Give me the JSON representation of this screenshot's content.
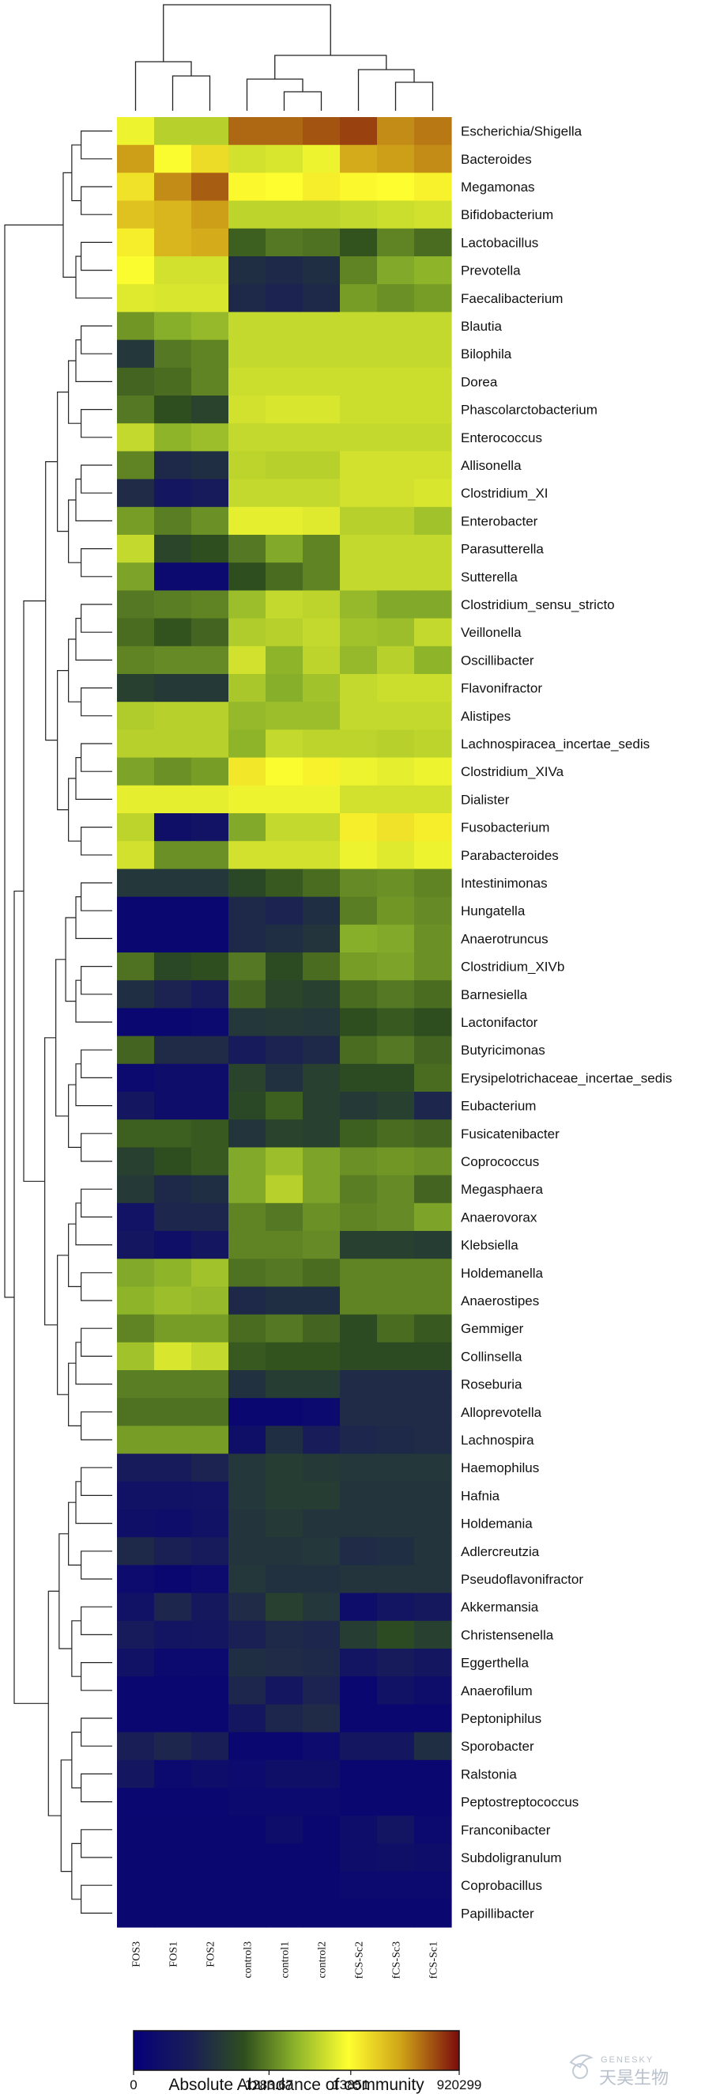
{
  "chart_data": {
    "type": "heatmap",
    "columns": [
      "FOS3",
      "FOS1",
      "FOS2",
      "control3",
      "control1",
      "control2",
      "fCS-Sc2",
      "fCS-Sc3",
      "fCS-Sc1"
    ],
    "rows": [
      "Escherichia/Shigella",
      "Bacteroides",
      "Megamonas",
      "Bifidobacterium",
      "Lactobacillus",
      "Prevotella",
      "Faecalibacterium",
      "Blautia",
      "Bilophila",
      "Dorea",
      "Phascolarctobacterium",
      "Enterococcus",
      "Allisonella",
      "Clostridium_XI",
      "Enterobacter",
      "Parasutterella",
      "Sutterella",
      "Clostridium_sensu_stricto",
      "Veillonella",
      "Oscillibacter",
      "Flavonifractor",
      "Alistipes",
      "Lachnospiracea_incertae_sedis",
      "Clostridium_XIVa",
      "Dialister",
      "Fusobacterium",
      "Parabacteroides",
      "Intestinimonas",
      "Hungatella",
      "Anaerotruncus",
      "Clostridium_XIVb",
      "Barnesiella",
      "Lactonifactor",
      "Butyricimonas",
      "Erysipelotrichaceae_incertae_sedis",
      "Eubacterium",
      "Fusicatenibacter",
      "Coprococcus",
      "Megasphaera",
      "Anaerovorax",
      "Klebsiella",
      "Holdemanella",
      "Anaerostipes",
      "Gemmiger",
      "Collinsella",
      "Roseburia",
      "Alloprevotella",
      "Lachnospira",
      "Haemophilus",
      "Hafnia",
      "Holdemania",
      "Adlercreutzia",
      "Pseudoflavonifractor",
      "Akkermansia",
      "Christensenella",
      "Eggerthella",
      "Anaerofilum",
      "Peptoniphilus",
      "Sporobacter",
      "Ralstonia",
      "Peptostreptococcus",
      "Franconibacter",
      "Subdoligranulum",
      "Coprobacillus",
      "Papillibacter"
    ],
    "values": [
      [
        0.64,
        0.56,
        0.56,
        0.9,
        0.9,
        0.92,
        0.94,
        0.86,
        0.88
      ],
      [
        0.84,
        0.66,
        0.73,
        0.6,
        0.61,
        0.64,
        0.82,
        0.84,
        0.86
      ],
      [
        0.72,
        0.86,
        0.91,
        0.68,
        0.67,
        0.7,
        0.68,
        0.67,
        0.69
      ],
      [
        0.78,
        0.8,
        0.84,
        0.57,
        0.57,
        0.57,
        0.58,
        0.59,
        0.6
      ],
      [
        0.7,
        0.8,
        0.82,
        0.36,
        0.4,
        0.39,
        0.34,
        0.42,
        0.38
      ],
      [
        0.66,
        0.6,
        0.6,
        0.22,
        0.2,
        0.22,
        0.42,
        0.48,
        0.5
      ],
      [
        0.62,
        0.61,
        0.61,
        0.2,
        0.18,
        0.2,
        0.46,
        0.44,
        0.46
      ],
      [
        0.45,
        0.49,
        0.51,
        0.58,
        0.58,
        0.58,
        0.58,
        0.58,
        0.58
      ],
      [
        0.25,
        0.4,
        0.42,
        0.58,
        0.58,
        0.58,
        0.58,
        0.58,
        0.58
      ],
      [
        0.37,
        0.38,
        0.42,
        0.59,
        0.59,
        0.59,
        0.59,
        0.59,
        0.59
      ],
      [
        0.4,
        0.33,
        0.29,
        0.6,
        0.61,
        0.61,
        0.59,
        0.59,
        0.59
      ],
      [
        0.58,
        0.5,
        0.52,
        0.58,
        0.58,
        0.58,
        0.58,
        0.58,
        0.58
      ],
      [
        0.42,
        0.2,
        0.22,
        0.57,
        0.56,
        0.56,
        0.6,
        0.6,
        0.6
      ],
      [
        0.21,
        0.12,
        0.14,
        0.58,
        0.58,
        0.58,
        0.6,
        0.6,
        0.61
      ],
      [
        0.46,
        0.41,
        0.44,
        0.63,
        0.63,
        0.62,
        0.56,
        0.56,
        0.53
      ],
      [
        0.58,
        0.3,
        0.33,
        0.4,
        0.48,
        0.42,
        0.58,
        0.58,
        0.58
      ],
      [
        0.47,
        0.05,
        0.05,
        0.33,
        0.38,
        0.42,
        0.58,
        0.58,
        0.58
      ],
      [
        0.4,
        0.41,
        0.42,
        0.52,
        0.58,
        0.57,
        0.51,
        0.48,
        0.48
      ],
      [
        0.38,
        0.34,
        0.37,
        0.55,
        0.56,
        0.58,
        0.53,
        0.52,
        0.58
      ],
      [
        0.42,
        0.43,
        0.43,
        0.6,
        0.5,
        0.57,
        0.51,
        0.56,
        0.5
      ],
      [
        0.28,
        0.26,
        0.26,
        0.54,
        0.49,
        0.53,
        0.58,
        0.59,
        0.59
      ],
      [
        0.55,
        0.56,
        0.56,
        0.51,
        0.52,
        0.52,
        0.58,
        0.58,
        0.58
      ],
      [
        0.56,
        0.56,
        0.56,
        0.5,
        0.58,
        0.57,
        0.57,
        0.56,
        0.57
      ],
      [
        0.47,
        0.44,
        0.46,
        0.71,
        0.66,
        0.69,
        0.64,
        0.63,
        0.64
      ],
      [
        0.63,
        0.63,
        0.63,
        0.64,
        0.64,
        0.64,
        0.6,
        0.6,
        0.6
      ],
      [
        0.57,
        0.08,
        0.1,
        0.48,
        0.58,
        0.58,
        0.7,
        0.72,
        0.7
      ],
      [
        0.6,
        0.44,
        0.44,
        0.6,
        0.6,
        0.6,
        0.64,
        0.62,
        0.64
      ],
      [
        0.25,
        0.25,
        0.25,
        0.31,
        0.35,
        0.38,
        0.43,
        0.44,
        0.42
      ],
      [
        0.04,
        0.04,
        0.04,
        0.2,
        0.18,
        0.22,
        0.41,
        0.45,
        0.43
      ],
      [
        0.04,
        0.04,
        0.04,
        0.2,
        0.22,
        0.24,
        0.49,
        0.48,
        0.44
      ],
      [
        0.39,
        0.31,
        0.33,
        0.4,
        0.32,
        0.38,
        0.46,
        0.47,
        0.44
      ],
      [
        0.22,
        0.18,
        0.14,
        0.37,
        0.3,
        0.28,
        0.38,
        0.4,
        0.38
      ],
      [
        0.04,
        0.04,
        0.05,
        0.25,
        0.26,
        0.25,
        0.33,
        0.35,
        0.33
      ],
      [
        0.37,
        0.21,
        0.21,
        0.14,
        0.18,
        0.2,
        0.38,
        0.4,
        0.37
      ],
      [
        0.05,
        0.07,
        0.07,
        0.29,
        0.23,
        0.28,
        0.32,
        0.32,
        0.38
      ],
      [
        0.12,
        0.07,
        0.07,
        0.31,
        0.36,
        0.28,
        0.26,
        0.28,
        0.19
      ],
      [
        0.36,
        0.36,
        0.35,
        0.24,
        0.29,
        0.28,
        0.36,
        0.38,
        0.37
      ],
      [
        0.28,
        0.33,
        0.35,
        0.48,
        0.52,
        0.47,
        0.44,
        0.45,
        0.44
      ],
      [
        0.26,
        0.2,
        0.22,
        0.48,
        0.56,
        0.47,
        0.41,
        0.43,
        0.37
      ],
      [
        0.1,
        0.19,
        0.19,
        0.42,
        0.4,
        0.44,
        0.42,
        0.43,
        0.47
      ],
      [
        0.12,
        0.08,
        0.12,
        0.42,
        0.42,
        0.43,
        0.28,
        0.28,
        0.27
      ],
      [
        0.48,
        0.5,
        0.53,
        0.39,
        0.4,
        0.38,
        0.42,
        0.42,
        0.42
      ],
      [
        0.5,
        0.52,
        0.51,
        0.2,
        0.22,
        0.22,
        0.42,
        0.42,
        0.42
      ],
      [
        0.42,
        0.46,
        0.46,
        0.38,
        0.4,
        0.37,
        0.32,
        0.38,
        0.35
      ],
      [
        0.53,
        0.61,
        0.58,
        0.35,
        0.34,
        0.34,
        0.32,
        0.32,
        0.32
      ],
      [
        0.41,
        0.41,
        0.41,
        0.23,
        0.27,
        0.27,
        0.21,
        0.21,
        0.21
      ],
      [
        0.39,
        0.39,
        0.39,
        0.04,
        0.04,
        0.05,
        0.21,
        0.21,
        0.21
      ],
      [
        0.46,
        0.46,
        0.46,
        0.08,
        0.22,
        0.15,
        0.19,
        0.2,
        0.21
      ],
      [
        0.14,
        0.14,
        0.18,
        0.25,
        0.27,
        0.26,
        0.25,
        0.25,
        0.25
      ],
      [
        0.09,
        0.09,
        0.1,
        0.25,
        0.27,
        0.27,
        0.24,
        0.24,
        0.24
      ],
      [
        0.08,
        0.07,
        0.09,
        0.24,
        0.26,
        0.24,
        0.24,
        0.24,
        0.24
      ],
      [
        0.2,
        0.17,
        0.14,
        0.24,
        0.24,
        0.25,
        0.21,
        0.22,
        0.24
      ],
      [
        0.06,
        0.04,
        0.06,
        0.25,
        0.23,
        0.23,
        0.24,
        0.24,
        0.24
      ],
      [
        0.09,
        0.19,
        0.13,
        0.21,
        0.28,
        0.25,
        0.07,
        0.11,
        0.13
      ],
      [
        0.14,
        0.11,
        0.12,
        0.17,
        0.2,
        0.19,
        0.27,
        0.32,
        0.28
      ],
      [
        0.09,
        0.05,
        0.05,
        0.22,
        0.21,
        0.2,
        0.11,
        0.14,
        0.12
      ],
      [
        0.04,
        0.04,
        0.04,
        0.19,
        0.12,
        0.18,
        0.04,
        0.09,
        0.07
      ],
      [
        0.04,
        0.04,
        0.04,
        0.12,
        0.19,
        0.21,
        0.04,
        0.04,
        0.04
      ],
      [
        0.16,
        0.19,
        0.16,
        0.04,
        0.04,
        0.06,
        0.12,
        0.12,
        0.22
      ],
      [
        0.12,
        0.05,
        0.07,
        0.06,
        0.08,
        0.08,
        0.04,
        0.04,
        0.04
      ],
      [
        0.04,
        0.04,
        0.04,
        0.05,
        0.05,
        0.05,
        0.04,
        0.04,
        0.04
      ],
      [
        0.04,
        0.04,
        0.04,
        0.04,
        0.07,
        0.04,
        0.07,
        0.11,
        0.05
      ],
      [
        0.04,
        0.04,
        0.04,
        0.04,
        0.04,
        0.04,
        0.07,
        0.08,
        0.07
      ],
      [
        0.04,
        0.04,
        0.04,
        0.04,
        0.04,
        0.04,
        0.05,
        0.05,
        0.05
      ],
      [
        0.04,
        0.04,
        0.04,
        0.04,
        0.04,
        0.04,
        0.04,
        0.04,
        0.04
      ]
    ],
    "colorscale": [
      "#06007a",
      "#1a1f55",
      "#2e4f1e",
      "#8eb52a",
      "#ffff30",
      "#d0a418",
      "#7a0b0b"
    ],
    "legend": {
      "ticks": [
        "0",
        "1283.67",
        "13851",
        "920299"
      ],
      "tick_positions": [
        0,
        0.416,
        0.667,
        1
      ],
      "title": "Absolute Abundance of community",
      "scale": "log"
    },
    "dendrogram_columns": {
      "leaves": [
        "FOS3",
        "FOS1",
        "FOS2",
        "control3",
        "control1",
        "control2",
        "fCS-Sc2",
        "fCS-Sc3",
        "fCS-Sc1"
      ]
    }
  },
  "watermark": {
    "text_top": "GENESKY",
    "text_bottom": "天昊生物"
  }
}
